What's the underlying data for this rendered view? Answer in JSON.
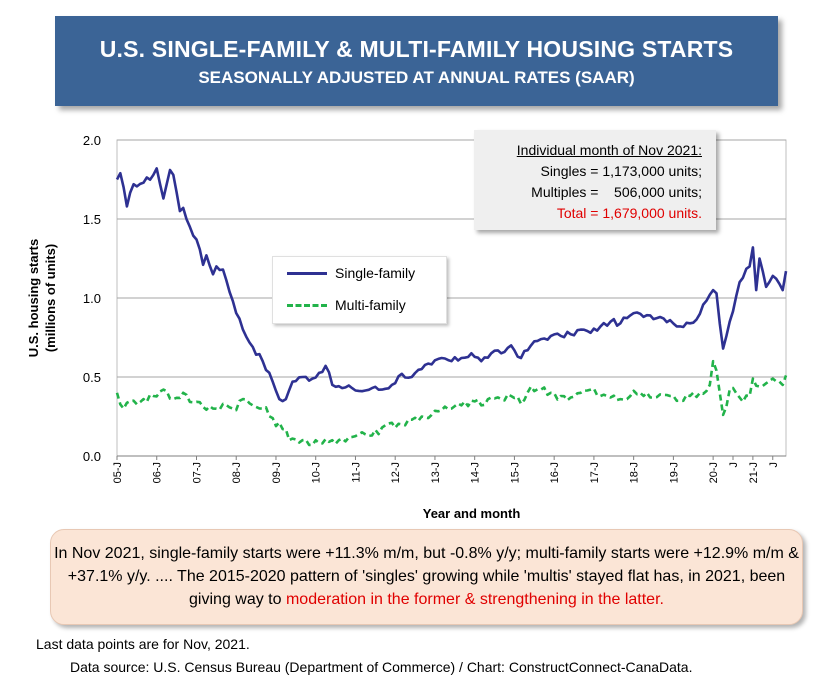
{
  "header": {
    "title": "U.S. SINGLE-FAMILY & MULTI-FAMILY HOUSING STARTS",
    "subtitle": "SEASONALLY ADJUSTED AT ANNUAL RATES (SAAR)"
  },
  "note": {
    "heading": "Individual month of Nov 2021:",
    "line1": "Singles = 1,173,000 units;",
    "line2": "Multiples =    506,000 units;",
    "total": "Total = 1,679,000 units."
  },
  "legend": {
    "single": "Single-family",
    "multi": "Multi-family"
  },
  "commentary": {
    "part1": "In Nov 2021, single-family starts were +11.3% m/m, but -0.8% y/y; multi-family starts were +12.9% m/m & +37.1% y/y. .... The 2015-2020 pattern of 'singles' growing while 'multis' stayed flat has, in 2021, been giving way to ",
    "highlight": "moderation in the former & strengthening in the latter."
  },
  "footer": {
    "last_data": "Last data points are for Nov, 2021.",
    "source": "Data source: U.S. Census Bureau (Department of Commerce) / Chart: ConstructConnect-CanaData."
  },
  "colors": {
    "single": "#2e3192",
    "multi": "#22b34a",
    "title_bg": "#3b6496",
    "highlight": "#e00000"
  },
  "chart_data": {
    "type": "line",
    "xlabel": "Year and month",
    "ylabel": "U.S. housing starts (millions of units)",
    "ylim": [
      0,
      2.0
    ],
    "yticks": [
      "0.0",
      "0.5",
      "1.0",
      "1.5",
      "2.0"
    ],
    "xticks": [
      "05-J",
      "06-J",
      "07-J",
      "08-J",
      "09-J",
      "10-J",
      "11-J",
      "12-J",
      "13-J",
      "14-J",
      "15-J",
      "16-J",
      "17-J",
      "18-J",
      "19-J",
      "20-J",
      "J",
      "21-J",
      "J"
    ],
    "grid": true,
    "legend_position": "center-left",
    "start": "2005-01",
    "end": "2021-11",
    "series": [
      {
        "name": "Single-family",
        "style": "solid",
        "anchors": [
          [
            "2005-01",
            1.75
          ],
          [
            "2005-02",
            1.79
          ],
          [
            "2005-04",
            1.58
          ],
          [
            "2005-06",
            1.72
          ],
          [
            "2005-09",
            1.73
          ],
          [
            "2005-12",
            1.78
          ],
          [
            "2006-01",
            1.82
          ],
          [
            "2006-03",
            1.63
          ],
          [
            "2006-05",
            1.81
          ],
          [
            "2006-06",
            1.78
          ],
          [
            "2006-08",
            1.55
          ],
          [
            "2006-09",
            1.57
          ],
          [
            "2006-11",
            1.45
          ],
          [
            "2007-01",
            1.37
          ],
          [
            "2007-03",
            1.21
          ],
          [
            "2007-04",
            1.27
          ],
          [
            "2007-06",
            1.15
          ],
          [
            "2007-07",
            1.2
          ],
          [
            "2007-09",
            1.18
          ],
          [
            "2007-12",
            0.98
          ],
          [
            "2008-03",
            0.8
          ],
          [
            "2008-06",
            0.69
          ],
          [
            "2008-09",
            0.6
          ],
          [
            "2008-12",
            0.47
          ],
          [
            "2009-02",
            0.36
          ],
          [
            "2009-04",
            0.36
          ],
          [
            "2009-06",
            0.47
          ],
          [
            "2009-09",
            0.5
          ],
          [
            "2009-12",
            0.49
          ],
          [
            "2010-04",
            0.57
          ],
          [
            "2010-06",
            0.45
          ],
          [
            "2010-09",
            0.43
          ],
          [
            "2010-12",
            0.43
          ],
          [
            "2011-03",
            0.41
          ],
          [
            "2011-06",
            0.43
          ],
          [
            "2011-09",
            0.42
          ],
          [
            "2011-12",
            0.45
          ],
          [
            "2012-03",
            0.52
          ],
          [
            "2012-06",
            0.5
          ],
          [
            "2012-09",
            0.55
          ],
          [
            "2012-12",
            0.58
          ],
          [
            "2013-03",
            0.62
          ],
          [
            "2013-06",
            0.6
          ],
          [
            "2013-09",
            0.62
          ],
          [
            "2013-12",
            0.65
          ],
          [
            "2014-03",
            0.6
          ],
          [
            "2014-06",
            0.65
          ],
          [
            "2014-09",
            0.65
          ],
          [
            "2014-12",
            0.7
          ],
          [
            "2015-03",
            0.62
          ],
          [
            "2015-06",
            0.7
          ],
          [
            "2015-09",
            0.74
          ],
          [
            "2015-12",
            0.76
          ],
          [
            "2016-03",
            0.76
          ],
          [
            "2016-06",
            0.77
          ],
          [
            "2016-09",
            0.8
          ],
          [
            "2016-12",
            0.78
          ],
          [
            "2017-03",
            0.82
          ],
          [
            "2017-06",
            0.85
          ],
          [
            "2017-09",
            0.84
          ],
          [
            "2017-12",
            0.89
          ],
          [
            "2018-03",
            0.9
          ],
          [
            "2018-06",
            0.89
          ],
          [
            "2018-09",
            0.88
          ],
          [
            "2018-12",
            0.86
          ],
          [
            "2019-03",
            0.82
          ],
          [
            "2019-06",
            0.84
          ],
          [
            "2019-09",
            0.9
          ],
          [
            "2019-12",
            1.02
          ],
          [
            "2020-01",
            1.05
          ],
          [
            "2020-02",
            1.03
          ],
          [
            "2020-04",
            0.68
          ],
          [
            "2020-06",
            0.85
          ],
          [
            "2020-09",
            1.1
          ],
          [
            "2020-12",
            1.2
          ],
          [
            "2021-01",
            1.32
          ],
          [
            "2021-02",
            1.05
          ],
          [
            "2021-03",
            1.25
          ],
          [
            "2021-05",
            1.07
          ],
          [
            "2021-07",
            1.14
          ],
          [
            "2021-09",
            1.09
          ],
          [
            "2021-10",
            1.05
          ],
          [
            "2021-11",
            1.17
          ]
        ]
      },
      {
        "name": "Multi-family",
        "style": "dashed",
        "anchors": [
          [
            "2005-01",
            0.4
          ],
          [
            "2005-03",
            0.3
          ],
          [
            "2005-06",
            0.35
          ],
          [
            "2005-09",
            0.36
          ],
          [
            "2005-12",
            0.38
          ],
          [
            "2006-03",
            0.42
          ],
          [
            "2006-06",
            0.36
          ],
          [
            "2006-09",
            0.4
          ],
          [
            "2006-12",
            0.34
          ],
          [
            "2007-03",
            0.31
          ],
          [
            "2007-06",
            0.3
          ],
          [
            "2007-09",
            0.33
          ],
          [
            "2007-12",
            0.3
          ],
          [
            "2008-03",
            0.36
          ],
          [
            "2008-06",
            0.32
          ],
          [
            "2008-09",
            0.3
          ],
          [
            "2008-12",
            0.24
          ],
          [
            "2009-03",
            0.17
          ],
          [
            "2009-06",
            0.11
          ],
          [
            "2009-09",
            0.1
          ],
          [
            "2009-12",
            0.07
          ],
          [
            "2010-03",
            0.08
          ],
          [
            "2010-06",
            0.1
          ],
          [
            "2010-09",
            0.11
          ],
          [
            "2010-12",
            0.12
          ],
          [
            "2011-03",
            0.15
          ],
          [
            "2011-06",
            0.13
          ],
          [
            "2011-09",
            0.18
          ],
          [
            "2011-12",
            0.21
          ],
          [
            "2012-03",
            0.2
          ],
          [
            "2012-06",
            0.23
          ],
          [
            "2012-09",
            0.25
          ],
          [
            "2012-12",
            0.26
          ],
          [
            "2013-03",
            0.29
          ],
          [
            "2013-06",
            0.3
          ],
          [
            "2013-09",
            0.32
          ],
          [
            "2013-12",
            0.35
          ],
          [
            "2014-03",
            0.32
          ],
          [
            "2014-06",
            0.37
          ],
          [
            "2014-09",
            0.36
          ],
          [
            "2014-12",
            0.38
          ],
          [
            "2015-03",
            0.33
          ],
          [
            "2015-06",
            0.44
          ],
          [
            "2015-09",
            0.42
          ],
          [
            "2015-12",
            0.4
          ],
          [
            "2016-03",
            0.38
          ],
          [
            "2016-06",
            0.37
          ],
          [
            "2016-09",
            0.4
          ],
          [
            "2016-12",
            0.42
          ],
          [
            "2017-03",
            0.38
          ],
          [
            "2017-06",
            0.37
          ],
          [
            "2017-09",
            0.36
          ],
          [
            "2017-12",
            0.38
          ],
          [
            "2018-03",
            0.4
          ],
          [
            "2018-06",
            0.37
          ],
          [
            "2018-09",
            0.39
          ],
          [
            "2018-12",
            0.38
          ],
          [
            "2019-03",
            0.35
          ],
          [
            "2019-06",
            0.38
          ],
          [
            "2019-09",
            0.4
          ],
          [
            "2019-12",
            0.45
          ],
          [
            "2020-01",
            0.6
          ],
          [
            "2020-02",
            0.54
          ],
          [
            "2020-04",
            0.26
          ],
          [
            "2020-06",
            0.42
          ],
          [
            "2020-09",
            0.37
          ],
          [
            "2020-12",
            0.38
          ],
          [
            "2021-01",
            0.49
          ],
          [
            "2021-03",
            0.44
          ],
          [
            "2021-05",
            0.46
          ],
          [
            "2021-07",
            0.49
          ],
          [
            "2021-09",
            0.47
          ],
          [
            "2021-10",
            0.45
          ],
          [
            "2021-11",
            0.51
          ]
        ]
      }
    ]
  }
}
